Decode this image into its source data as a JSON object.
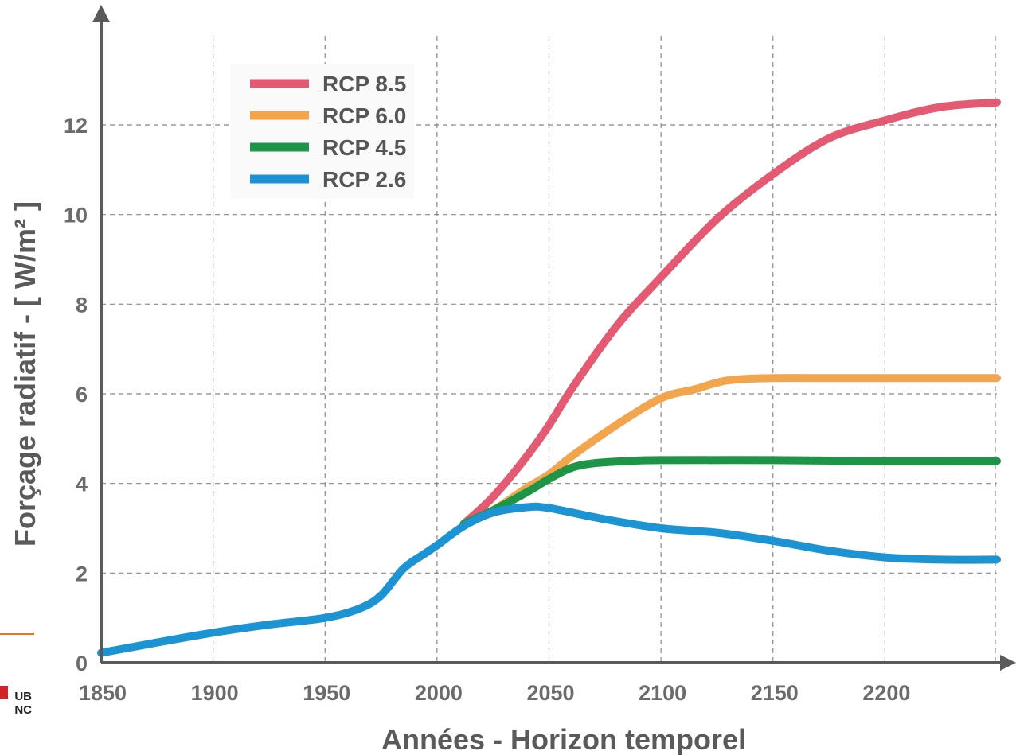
{
  "chart_data": {
    "type": "line",
    "title": "",
    "xlabel": "Années - Horizon temporel",
    "ylabel": "Forçage radiatif  -  [ W/m² ]",
    "xlim": [
      1850,
      2250
    ],
    "ylim": [
      0,
      13
    ],
    "x_ticks": [
      1850,
      1900,
      1950,
      2000,
      2050,
      2100,
      2150,
      2200
    ],
    "y_ticks": [
      0,
      2,
      4,
      6,
      8,
      10,
      12
    ],
    "grid": true,
    "legend_position": "top-left",
    "series": [
      {
        "name": "RCP 8.5",
        "color": "#e35a72",
        "x": [
          2012,
          2025,
          2040,
          2050,
          2060,
          2080,
          2100,
          2125,
          2150,
          2175,
          2200,
          2225,
          2250
        ],
        "y": [
          3.1,
          3.7,
          4.6,
          5.3,
          6.1,
          7.5,
          8.6,
          9.9,
          10.9,
          11.7,
          12.1,
          12.4,
          12.5
        ]
      },
      {
        "name": "RCP 6.0",
        "color": "#f2a54d",
        "x": [
          2012,
          2025,
          2040,
          2050,
          2060,
          2080,
          2100,
          2115,
          2130,
          2150,
          2175,
          2200,
          2225,
          2250
        ],
        "y": [
          3.1,
          3.4,
          3.9,
          4.2,
          4.6,
          5.3,
          5.9,
          6.1,
          6.3,
          6.35,
          6.35,
          6.35,
          6.35,
          6.35
        ]
      },
      {
        "name": "RCP 4.5",
        "color": "#1e9447",
        "x": [
          2012,
          2025,
          2040,
          2050,
          2060,
          2070,
          2085,
          2100,
          2150,
          2200,
          2250
        ],
        "y": [
          3.1,
          3.4,
          3.8,
          4.1,
          4.35,
          4.45,
          4.5,
          4.52,
          4.52,
          4.5,
          4.5
        ],
        "shares_history": true
      },
      {
        "name": "RCP 2.6",
        "color": "#1c94d4",
        "x": [
          1850,
          1875,
          1900,
          1925,
          1950,
          1965,
          1975,
          1985,
          1995,
          2000,
          2012,
          2025,
          2040,
          2050,
          2075,
          2100,
          2125,
          2150,
          2175,
          2200,
          2225,
          2250
        ],
        "y": [
          0.22,
          0.45,
          0.67,
          0.85,
          1.0,
          1.2,
          1.5,
          2.1,
          2.45,
          2.62,
          3.05,
          3.35,
          3.47,
          3.45,
          3.2,
          3.0,
          2.9,
          2.72,
          2.5,
          2.35,
          2.3,
          2.3
        ]
      }
    ]
  },
  "logo": {
    "line1": "UB",
    "line2": "NC",
    "accent_color": "#d2232a",
    "rule_color": "#e07b1f"
  }
}
